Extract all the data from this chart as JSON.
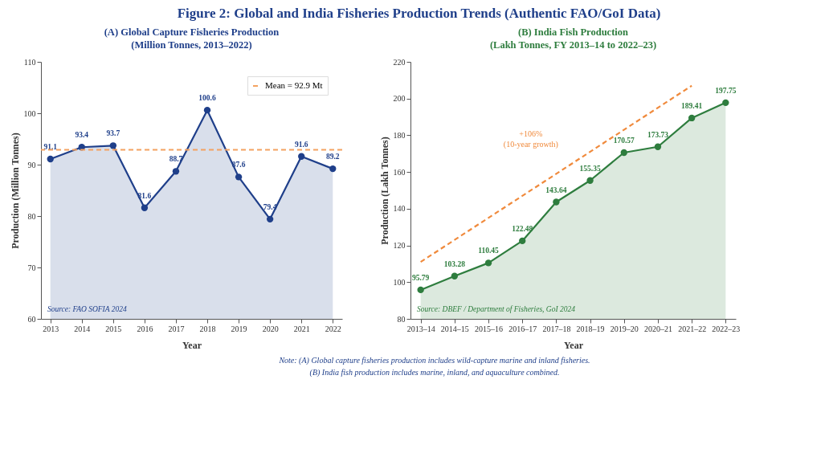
{
  "chart_data": [
    {
      "type": "other",
      "title": "Figure 2: Global and India Fisheries Production Trends (Authentic FAO/GoI Data)",
      "annotations": [
        "Note:  (A) Global capture fisheries production includes wild-capture marine and inland fisheries.",
        "(B) India fish production includes marine, inland, and aquaculture combined."
      ]
    },
    {
      "type": "area",
      "title": "(A) Global Capture Fisheries Production",
      "subtitle": "(Million Tonnes, 2013–2022)",
      "xlabel": "Year",
      "ylabel": "Production (Million Tonnes)",
      "categories": [
        "2013",
        "2014",
        "2015",
        "2016",
        "2017",
        "2018",
        "2019",
        "2020",
        "2021",
        "2022"
      ],
      "series": [
        {
          "color": "#1f3f8a",
          "values": [
            91.1,
            93.4,
            93.7,
            81.6,
            88.7,
            100.6,
            87.6,
            79.4,
            91.6,
            89.2
          ],
          "value_labels": [
            "91.1",
            "93.4",
            "93.7",
            "81.6",
            "88.7",
            "100.6",
            "87.6",
            "79.4",
            "91.6",
            "89.2"
          ]
        }
      ],
      "ylim": [
        60,
        110
      ],
      "yticks": [
        60,
        70,
        80,
        90,
        100,
        110
      ],
      "marker": "circle",
      "legend": "top right",
      "ref_lines": [
        {
          "axis": "y",
          "value": 92.9,
          "label": "Mean = 92.9 Mt",
          "color": "#f4a261",
          "line_style": "dashed"
        }
      ],
      "annotations": [
        "Source: FAO SOFIA 2024"
      ]
    },
    {
      "type": "area",
      "title": "(B) India Fish Production",
      "subtitle": "(Lakh Tonnes, FY 2013–14 to 2022–23)",
      "xlabel": "Year",
      "ylabel": "Production (Lakh Tonnes)",
      "categories": [
        "2013–14",
        "2014–15",
        "2015–16",
        "2016–17",
        "2017–18",
        "2018–19",
        "2019–20",
        "2020–21",
        "2021–22",
        "2022–23"
      ],
      "series": [
        {
          "color": "#2e7d3e",
          "values": [
            95.79,
            103.28,
            110.45,
            122.48,
            143.64,
            155.35,
            170.57,
            173.73,
            189.41,
            197.75
          ],
          "value_labels": [
            "95.79",
            "103.28",
            "110.45",
            "122.48",
            "143.64",
            "155.35",
            "170.57",
            "173.73",
            "189.41",
            "197.75"
          ]
        },
        {
          "type": "line",
          "x": [
            "2013–14",
            "2021–22"
          ],
          "values": [
            111,
            207
          ],
          "color": "#f08a3c",
          "line_style": "dashed",
          "marker": "none"
        }
      ],
      "ylim": [
        80,
        220
      ],
      "yticks": [
        80,
        100,
        120,
        140,
        160,
        180,
        200,
        220
      ],
      "marker": "circle",
      "annotations": [
        "+106%\n(10-year growth)",
        "Source: DBEF / Department of Fisheries, GoI 2024"
      ]
    }
  ]
}
